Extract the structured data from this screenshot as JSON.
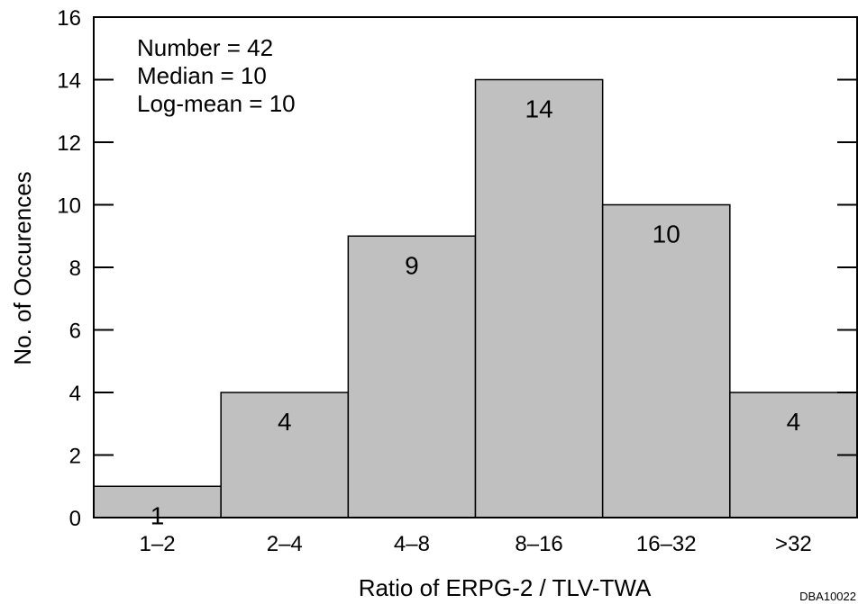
{
  "chart_data": {
    "type": "bar",
    "title": "",
    "xlabel": "Ratio of ERPG-2 / TLV-TWA",
    "ylabel": "No. of Occurences",
    "categories": [
      "1–2",
      "2–4",
      "4–8",
      "8–16",
      "16–32",
      ">32"
    ],
    "values": [
      1,
      4,
      9,
      14,
      10,
      4
    ],
    "data_labels": [
      "1",
      "4",
      "9",
      "14",
      "10",
      "4"
    ],
    "ylim": [
      0,
      16
    ],
    "yticks": [
      0,
      2,
      4,
      6,
      8,
      10,
      12,
      14,
      16
    ],
    "yticks_labels": [
      "0",
      "2",
      "4",
      "6",
      "8",
      "10",
      "12",
      "14",
      "16"
    ],
    "grid": false,
    "bar_color": "#c0c0c0",
    "annotations": [
      "Number = 42",
      "Median = 10",
      "Log-mean = 10"
    ],
    "figure_code": "DBA10022"
  }
}
